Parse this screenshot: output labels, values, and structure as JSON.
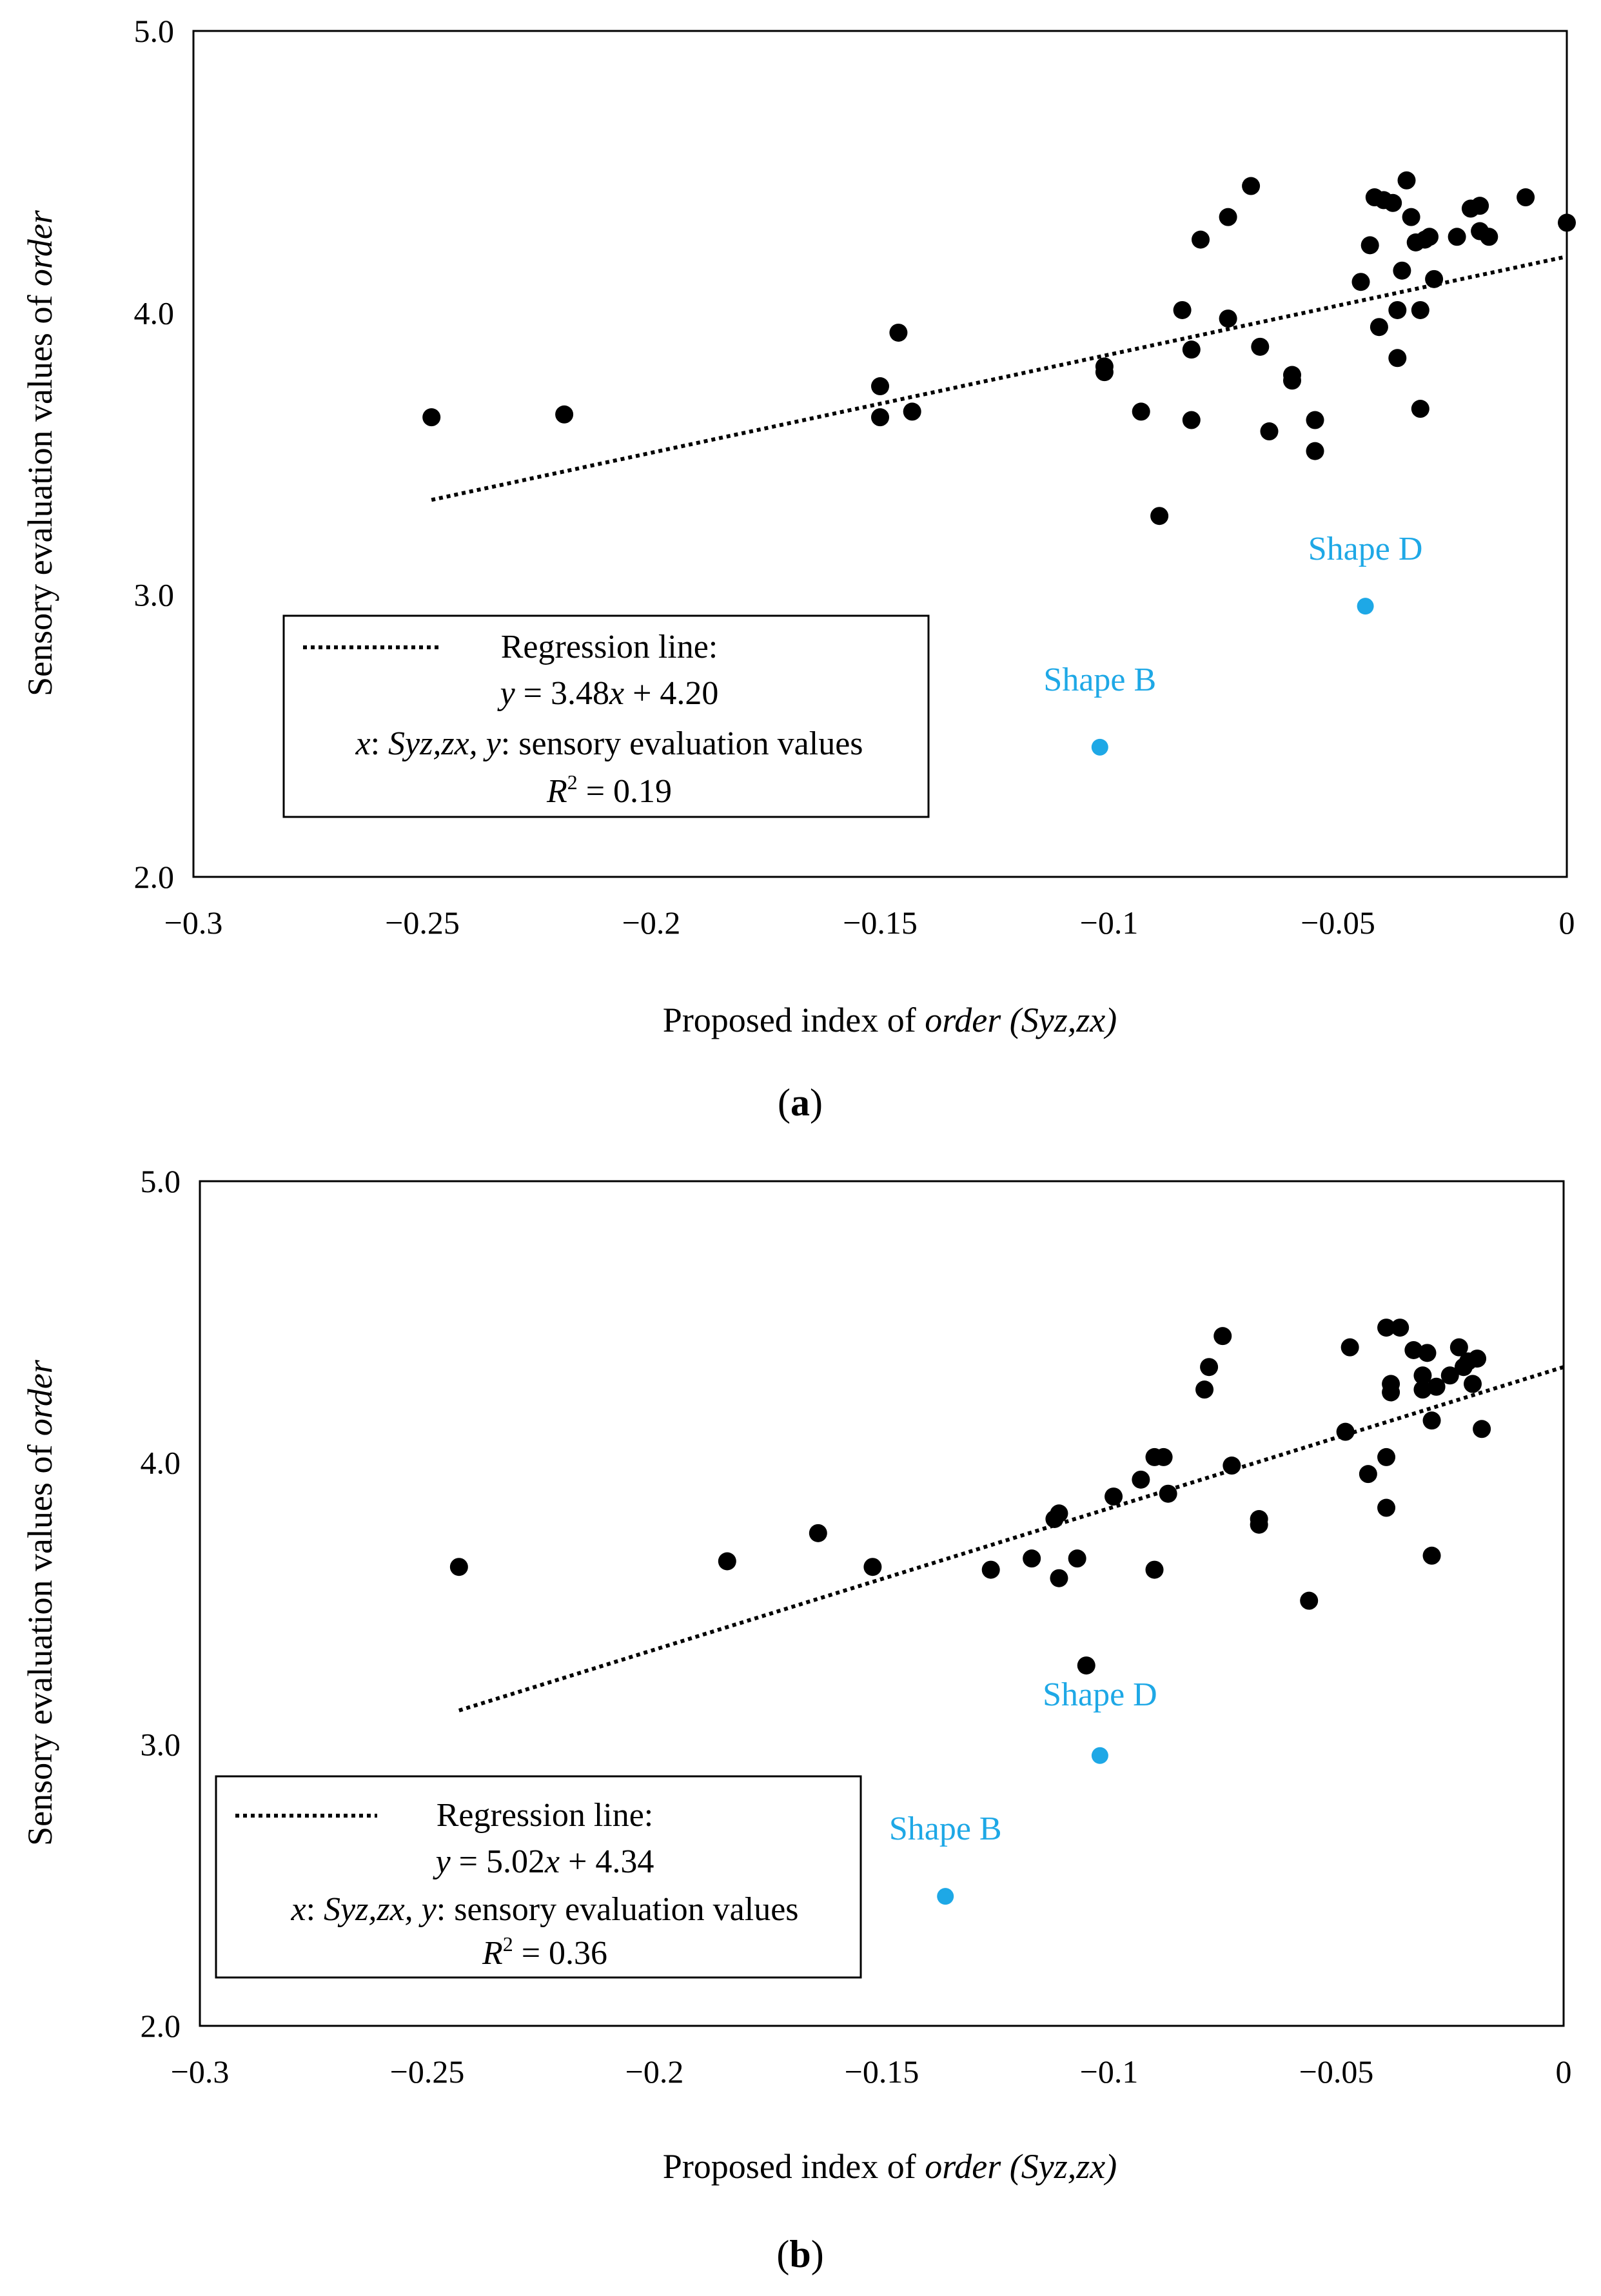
{
  "colors": {
    "point": "#000000",
    "highlight": "#1ea8e6",
    "frame": "#000000",
    "background": "#ffffff"
  },
  "chart_data": [
    {
      "type": "scatter",
      "panel": "(a)",
      "panel_label": {
        "open": "(",
        "letter": "a",
        "close": ")"
      },
      "xlabel": {
        "pre": "Proposed index of ",
        "ital1": "order",
        "sp": " ",
        "ital2": "(Syz,zx)"
      },
      "ylabel": {
        "pre": "Sensory evaluation values of ",
        "ital": "order"
      },
      "xlim": [
        -0.3,
        0
      ],
      "ylim": [
        2.0,
        5.0
      ],
      "xticks": [
        -0.3,
        -0.25,
        -0.2,
        -0.15,
        -0.1,
        -0.05,
        0
      ],
      "xtick_labels": [
        "−0.3",
        "−0.25",
        "−0.2",
        "−0.15",
        "−0.1",
        "−0.05",
        "0"
      ],
      "yticks": [
        2.0,
        3.0,
        4.0,
        5.0
      ],
      "ytick_labels": [
        "2.0",
        "3.0",
        "4.0",
        "5.0"
      ],
      "regression": {
        "slope": 3.48,
        "intercept": 4.2,
        "x_range": [
          -0.248,
          0
        ]
      },
      "legend": {
        "title": "Regression line:",
        "equation": {
          "y": "y",
          "mid": " = 3.48",
          "x": "x",
          "rest": " + 4.20"
        },
        "vars": {
          "x": "x",
          "a": ": ",
          "s": "Syz,zx,",
          "b": " ",
          "y": "y",
          "c": ": sensory evaluation values"
        },
        "r2": {
          "R": "R",
          "sup": "2",
          "rest": " = 0.19"
        }
      },
      "points": [
        [
          -0.248,
          3.63
        ],
        [
          -0.219,
          3.64
        ],
        [
          -0.15,
          3.74
        ],
        [
          -0.15,
          3.63
        ],
        [
          -0.146,
          3.93
        ],
        [
          -0.143,
          3.65
        ],
        [
          -0.101,
          3.81
        ],
        [
          -0.101,
          3.79
        ],
        [
          -0.093,
          3.65
        ],
        [
          -0.089,
          3.28
        ],
        [
          -0.084,
          4.01
        ],
        [
          -0.082,
          3.87
        ],
        [
          -0.082,
          3.62
        ],
        [
          -0.08,
          4.26
        ],
        [
          -0.074,
          4.34
        ],
        [
          -0.074,
          3.98
        ],
        [
          -0.069,
          4.45
        ],
        [
          -0.067,
          3.88
        ],
        [
          -0.065,
          3.58
        ],
        [
          -0.06,
          3.78
        ],
        [
          -0.06,
          3.76
        ],
        [
          -0.055,
          3.62
        ],
        [
          -0.055,
          3.51
        ],
        [
          -0.045,
          4.11
        ],
        [
          -0.043,
          4.24
        ],
        [
          -0.042,
          4.41
        ],
        [
          -0.041,
          3.95
        ],
        [
          -0.04,
          4.4
        ],
        [
          -0.038,
          4.39
        ],
        [
          -0.037,
          3.84
        ],
        [
          -0.037,
          4.01
        ],
        [
          -0.036,
          4.15
        ],
        [
          -0.035,
          4.47
        ],
        [
          -0.034,
          4.34
        ],
        [
          -0.033,
          4.25
        ],
        [
          -0.032,
          4.01
        ],
        [
          -0.032,
          3.66
        ],
        [
          -0.031,
          4.26
        ],
        [
          -0.03,
          4.27
        ],
        [
          -0.029,
          4.12
        ],
        [
          -0.024,
          4.27
        ],
        [
          -0.021,
          4.37
        ],
        [
          -0.019,
          4.38
        ],
        [
          -0.019,
          4.29
        ],
        [
          -0.017,
          4.27
        ],
        [
          -0.009,
          4.41
        ],
        [
          0.0,
          4.32
        ]
      ],
      "highlighted": [
        {
          "label": "Shape D",
          "x": -0.044,
          "y": 2.96
        },
        {
          "label": "Shape B",
          "x": -0.102,
          "y": 2.46
        }
      ]
    },
    {
      "type": "scatter",
      "panel": "(b)",
      "panel_label": {
        "open": "(",
        "letter": "b",
        "close": ")"
      },
      "xlabel": {
        "pre": "Proposed index of ",
        "ital1": "order",
        "sp": " ",
        "ital2": "(Syz,zx)"
      },
      "ylabel": {
        "pre": "Sensory evaluation values of ",
        "ital": "order"
      },
      "xlim": [
        -0.3,
        0
      ],
      "ylim": [
        2.0,
        5.0
      ],
      "xticks": [
        -0.3,
        -0.25,
        -0.2,
        -0.15,
        -0.1,
        -0.05,
        0
      ],
      "xtick_labels": [
        "−0.3",
        "−0.25",
        "−0.2",
        "−0.15",
        "−0.1",
        "−0.05",
        "0"
      ],
      "yticks": [
        2.0,
        3.0,
        4.0,
        5.0
      ],
      "ytick_labels": [
        "2.0",
        "3.0",
        "4.0",
        "5.0"
      ],
      "regression": {
        "slope": 5.02,
        "intercept": 4.34,
        "x_range": [
          -0.243,
          0
        ]
      },
      "legend": {
        "title": "Regression line:",
        "equation": {
          "y": "y",
          "mid": " = 5.02",
          "x": "x",
          "rest": " + 4.34"
        },
        "vars": {
          "x": "x",
          "a": ": ",
          "s": "Syz,zx,",
          "b": " ",
          "y": "y",
          "c": ": sensory evaluation values"
        },
        "r2": {
          "R": "R",
          "sup": "2",
          "rest": " = 0.36"
        }
      },
      "points": [
        [
          -0.243,
          3.63
        ],
        [
          -0.184,
          3.65
        ],
        [
          -0.164,
          3.75
        ],
        [
          -0.152,
          3.63
        ],
        [
          -0.126,
          3.62
        ],
        [
          -0.117,
          3.66
        ],
        [
          -0.112,
          3.8
        ],
        [
          -0.111,
          3.82
        ],
        [
          -0.111,
          3.59
        ],
        [
          -0.107,
          3.66
        ],
        [
          -0.105,
          3.28
        ],
        [
          -0.099,
          3.88
        ],
        [
          -0.093,
          3.94
        ],
        [
          -0.09,
          4.02
        ],
        [
          -0.09,
          3.62
        ],
        [
          -0.088,
          4.02
        ],
        [
          -0.087,
          3.89
        ],
        [
          -0.079,
          4.26
        ],
        [
          -0.078,
          4.34
        ],
        [
          -0.075,
          4.45
        ],
        [
          -0.073,
          3.99
        ],
        [
          -0.067,
          3.8
        ],
        [
          -0.067,
          3.78
        ],
        [
          -0.056,
          3.51
        ],
        [
          -0.048,
          4.11
        ],
        [
          -0.047,
          4.41
        ],
        [
          -0.043,
          3.96
        ],
        [
          -0.039,
          4.02
        ],
        [
          -0.039,
          3.84
        ],
        [
          -0.039,
          4.48
        ],
        [
          -0.038,
          4.28
        ],
        [
          -0.038,
          4.25
        ],
        [
          -0.036,
          4.48
        ],
        [
          -0.033,
          4.4
        ],
        [
          -0.031,
          4.26
        ],
        [
          -0.031,
          4.31
        ],
        [
          -0.03,
          4.39
        ],
        [
          -0.029,
          4.15
        ],
        [
          -0.029,
          3.67
        ],
        [
          -0.028,
          4.27
        ],
        [
          -0.025,
          4.31
        ],
        [
          -0.023,
          4.41
        ],
        [
          -0.022,
          4.34
        ],
        [
          -0.021,
          4.36
        ],
        [
          -0.02,
          4.28
        ],
        [
          -0.019,
          4.37
        ],
        [
          -0.018,
          4.12
        ]
      ],
      "highlighted": [
        {
          "label": "Shape D",
          "x": -0.102,
          "y": 2.96
        },
        {
          "label": "Shape B",
          "x": -0.136,
          "y": 2.46
        }
      ]
    }
  ]
}
